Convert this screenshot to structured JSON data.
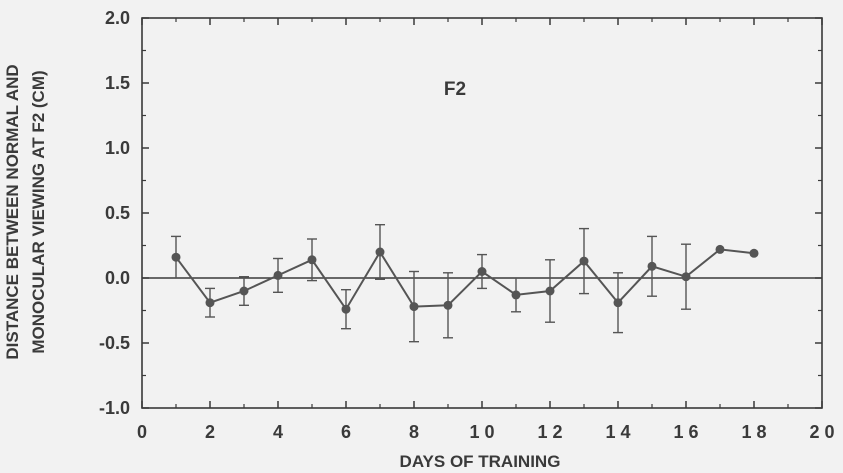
{
  "chart_data": {
    "type": "line",
    "annotation": "F2",
    "xlabel": "DAYS OF TRAINING",
    "ylabel_lines": [
      "DISTANCE BETWEEN NORMAL AND",
      "MONOCULAR VIEWING AT F2 (CM)"
    ],
    "xlim": [
      0,
      20
    ],
    "ylim": [
      -1.0,
      2.0
    ],
    "x_ticks": [
      0,
      2,
      4,
      6,
      8,
      10,
      12,
      14,
      16,
      18,
      20
    ],
    "x_tick_labels": [
      "0",
      "2",
      "4",
      "6",
      "8",
      "1 0",
      "1 2",
      "1 4",
      "1 6",
      "1 8",
      "2 0"
    ],
    "y_ticks": [
      -1.0,
      -0.5,
      0.0,
      0.5,
      1.0,
      1.5,
      2.0
    ],
    "y_tick_labels": [
      "-1.0",
      "-0.5",
      "0.0",
      "0.5",
      "1.0",
      "1.5",
      "2.0"
    ],
    "reference_line_y": 0.0,
    "grid": false,
    "colors": {
      "data": "#555555",
      "axis": "#3a3a3a",
      "background": "#f2f2f2"
    },
    "series": [
      {
        "x": [
          1,
          2,
          3,
          4,
          5,
          6,
          7,
          8,
          9,
          10,
          11,
          12,
          13,
          14,
          15,
          16,
          17,
          18
        ],
        "y": [
          0.16,
          -0.19,
          -0.1,
          0.02,
          0.14,
          -0.24,
          0.2,
          -0.22,
          -0.21,
          0.05,
          -0.13,
          -0.1,
          0.13,
          -0.19,
          0.09,
          0.01,
          0.22,
          0.19
        ],
        "error": [
          0.16,
          0.11,
          0.11,
          0.13,
          0.16,
          0.15,
          0.21,
          0.27,
          0.25,
          0.13,
          0.13,
          0.24,
          0.25,
          0.23,
          0.23,
          0.25,
          null,
          null
        ]
      }
    ]
  }
}
